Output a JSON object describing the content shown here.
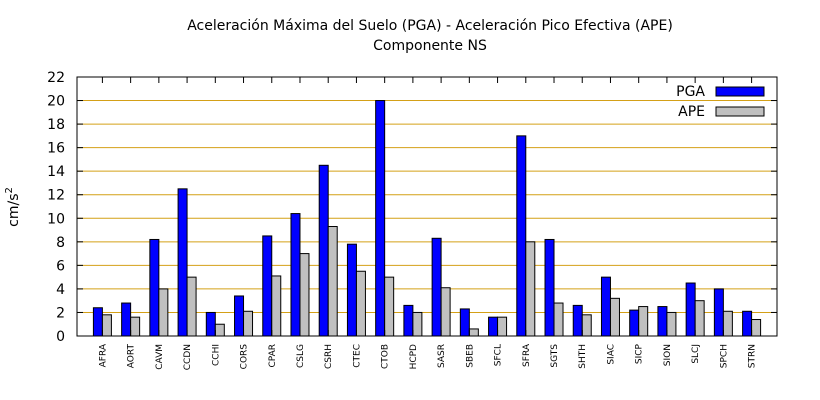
{
  "chart_data": {
    "type": "bar",
    "title": "Aceleración Máxima del Suelo (PGA) -  Aceleración Pico Efectiva (APE)",
    "subtitle": "Componente NS",
    "ylabel_base": "cm/s",
    "ylabel_exp": "2",
    "ylim": [
      0,
      22
    ],
    "yticks": [
      "0",
      "2",
      "4",
      "6",
      "8",
      "10",
      "12",
      "14",
      "16",
      "18",
      "20",
      "22"
    ],
    "grid": true,
    "legend_position": "top-right",
    "categories": [
      "AFRA",
      "AORT",
      "CAVM",
      "CCDN",
      "CCHI",
      "CORS",
      "CPAR",
      "CSLG",
      "CSRH",
      "CTEC",
      "CTOB",
      "HCPD",
      "SASR",
      "SBEB",
      "SFCL",
      "SFRA",
      "SGTS",
      "SHTH",
      "SIAC",
      "SICP",
      "SION",
      "SLCJ",
      "SPCH",
      "STRN"
    ],
    "series": [
      {
        "name": "PGA",
        "color": "#0000ff",
        "values": [
          2.4,
          2.8,
          8.2,
          12.5,
          2.0,
          3.4,
          8.5,
          10.4,
          14.5,
          7.8,
          20.0,
          2.6,
          8.3,
          2.3,
          1.6,
          17.0,
          8.2,
          2.6,
          5.0,
          2.2,
          2.5,
          4.5,
          4.0,
          2.1
        ]
      },
      {
        "name": "APE",
        "color": "#c0c0c0",
        "values": [
          1.8,
          1.6,
          4.0,
          5.0,
          1.0,
          2.1,
          5.1,
          7.0,
          9.3,
          5.5,
          5.0,
          2.0,
          4.1,
          0.6,
          1.6,
          8.0,
          2.8,
          1.8,
          3.2,
          2.5,
          2.0,
          3.0,
          2.1,
          1.4
        ]
      }
    ]
  }
}
